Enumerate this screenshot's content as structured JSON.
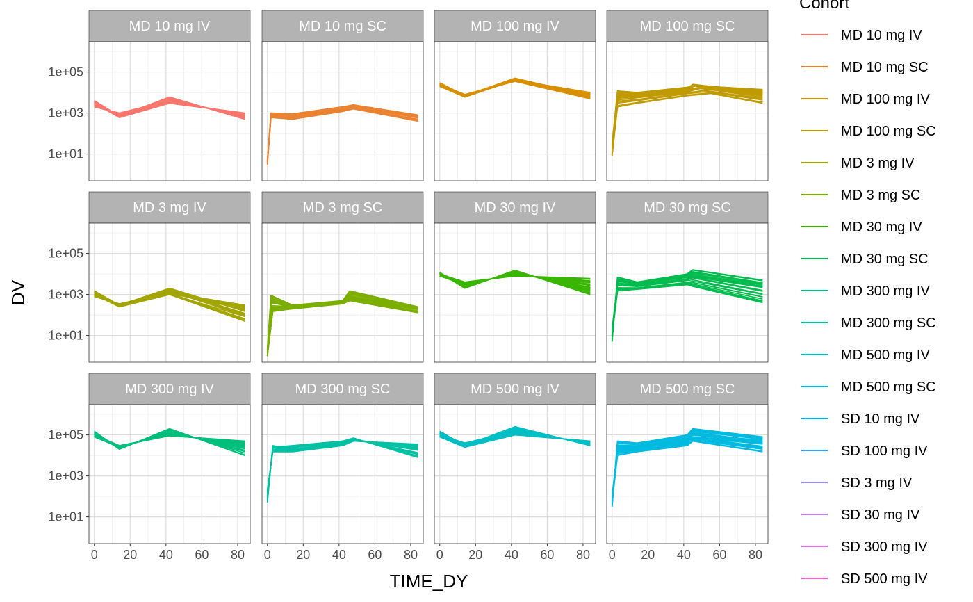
{
  "chart_data": {
    "type": "line",
    "title": "",
    "xlabel": "TIME_DY",
    "ylabel": "DV",
    "x_scale": "linear",
    "y_scale": "log10",
    "xlim": [
      -3,
      87
    ],
    "ylim": [
      0.5,
      3000000
    ],
    "x_ticks": [
      0,
      20,
      40,
      60,
      80
    ],
    "y_ticks": [
      10,
      1000,
      100000
    ],
    "y_tick_labels": [
      "1e+01",
      "1e+03",
      "1e+05"
    ],
    "grid": true,
    "legend_position": "right",
    "legend_title": "Cohort",
    "legend": [
      {
        "label": "MD 10 mg IV",
        "color": "#F8766D"
      },
      {
        "label": "MD 10 mg SC",
        "color": "#EA8331"
      },
      {
        "label": "MD 100 mg IV",
        "color": "#D89000"
      },
      {
        "label": "MD 100 mg SC",
        "color": "#C09B00"
      },
      {
        "label": "MD 3 mg IV",
        "color": "#A3A500"
      },
      {
        "label": "MD 3 mg SC",
        "color": "#7CAE00"
      },
      {
        "label": "MD 30 mg IV",
        "color": "#39B600"
      },
      {
        "label": "MD 30 mg SC",
        "color": "#00BB4E"
      },
      {
        "label": "MD 300 mg IV",
        "color": "#00BF7D"
      },
      {
        "label": "MD 300 mg SC",
        "color": "#00C1A3"
      },
      {
        "label": "MD 500 mg IV",
        "color": "#00BFC4"
      },
      {
        "label": "MD 500 mg SC",
        "color": "#00BAE0"
      },
      {
        "label": "SD 10 mg IV",
        "color": "#00B0F6"
      },
      {
        "label": "SD 100 mg IV",
        "color": "#35A2FF"
      },
      {
        "label": "SD 3 mg IV",
        "color": "#9590FF"
      },
      {
        "label": "SD 30 mg IV",
        "color": "#C77CFF"
      },
      {
        "label": "SD 300 mg IV",
        "color": "#E76BF3"
      },
      {
        "label": "SD 500 mg IV",
        "color": "#FA62DB"
      }
    ],
    "panels": [
      {
        "label": "MD 10 mg IV",
        "color": "#F8766D",
        "route": "IV",
        "series": [
          {
            "x": [
              0,
              14,
              42,
              84
            ],
            "y": [
              4000,
              700,
              6000,
              500
            ]
          },
          {
            "x": [
              0,
              14,
              42,
              84
            ],
            "y": [
              2000,
              1000,
              4000,
              800
            ]
          },
          {
            "x": [
              0,
              14,
              42,
              84
            ],
            "y": [
              3000,
              600,
              3000,
              1000
            ]
          }
        ]
      },
      {
        "label": "MD 10 mg SC",
        "color": "#EA8331",
        "route": "SC",
        "series": [
          {
            "x": [
              0,
              2,
              14,
              42,
              48,
              84
            ],
            "y": [
              3,
              800,
              700,
              1500,
              2000,
              600
            ]
          },
          {
            "x": [
              0,
              2,
              14,
              42,
              48,
              84
            ],
            "y": [
              5,
              1000,
              900,
              2000,
              2500,
              800
            ]
          },
          {
            "x": [
              0,
              2,
              14,
              42,
              48,
              84
            ],
            "y": [
              4,
              600,
              500,
              1200,
              1600,
              400
            ]
          }
        ]
      },
      {
        "label": "MD 100 mg IV",
        "color": "#D89000",
        "route": "IV",
        "series": [
          {
            "x": [
              0,
              14,
              42,
              84
            ],
            "y": [
              30000,
              7000,
              50000,
              7000
            ]
          },
          {
            "x": [
              0,
              14,
              42,
              84
            ],
            "y": [
              20000,
              6000,
              40000,
              10000
            ]
          },
          {
            "x": [
              0,
              14,
              42,
              84
            ],
            "y": [
              25000,
              8000,
              35000,
              5000
            ]
          }
        ]
      },
      {
        "label": "MD 100 mg SC",
        "color": "#C09B00",
        "route": "SC",
        "series": [
          {
            "x": [
              0,
              3,
              14,
              42,
              45,
              84
            ],
            "y": [
              10,
              8000,
              9000,
              15000,
              25000,
              10000
            ]
          },
          {
            "x": [
              0,
              3,
              14,
              42,
              45,
              84
            ],
            "y": [
              30,
              12000,
              10000,
              18000,
              22000,
              14000
            ]
          },
          {
            "x": [
              0,
              3,
              14,
              42,
              55,
              84
            ],
            "y": [
              8,
              2000,
              3000,
              7000,
              9000,
              3000
            ]
          }
        ]
      },
      {
        "label": "MD 3 mg IV",
        "color": "#A3A500",
        "route": "IV",
        "series": [
          {
            "x": [
              0,
              14,
              42,
              84
            ],
            "y": [
              1500,
              300,
              2000,
              150
            ]
          },
          {
            "x": [
              0,
              14,
              42,
              84
            ],
            "y": [
              800,
              350,
              1200,
              300
            ]
          },
          {
            "x": [
              0,
              14,
              42,
              84
            ],
            "y": [
              1000,
              250,
              1000,
              50
            ]
          }
        ]
      },
      {
        "label": "MD 3 mg SC",
        "color": "#7CAE00",
        "route": "SC",
        "series": [
          {
            "x": [
              0,
              3,
              14,
              42,
              46,
              84
            ],
            "y": [
              1,
              200,
              250,
              450,
              700,
              200
            ]
          },
          {
            "x": [
              0,
              2,
              14,
              42,
              46,
              84
            ],
            "y": [
              2,
              900,
              300,
              500,
              1500,
              250
            ]
          },
          {
            "x": [
              0,
              3,
              14,
              42,
              46,
              84
            ],
            "y": [
              1,
              150,
              200,
              350,
              500,
              130
            ]
          }
        ]
      },
      {
        "label": "MD 30 mg IV",
        "color": "#39B600",
        "route": "IV",
        "series": [
          {
            "x": [
              0,
              14,
              42,
              84
            ],
            "y": [
              12000,
              2000,
              15000,
              1000
            ]
          },
          {
            "x": [
              0,
              14,
              42,
              84
            ],
            "y": [
              8000,
              3000,
              10000,
              3000
            ]
          },
          {
            "x": [
              0,
              14,
              42,
              84
            ],
            "y": [
              10000,
              4000,
              8000,
              6000
            ]
          }
        ]
      },
      {
        "label": "MD 30 mg SC",
        "color": "#00BB4E",
        "route": "SC",
        "series": [
          {
            "x": [
              0,
              3,
              14,
              42,
              45,
              84
            ],
            "y": [
              5,
              7000,
              4000,
              10000,
              16000,
              5000
            ]
          },
          {
            "x": [
              0,
              3,
              14,
              42,
              45,
              84
            ],
            "y": [
              20,
              3000,
              2500,
              5000,
              8000,
              2500
            ]
          },
          {
            "x": [
              0,
              3,
              14,
              42,
              45,
              84
            ],
            "y": [
              10,
              1500,
              1800,
              3000,
              2500,
              400
            ]
          }
        ]
      },
      {
        "label": "MD 300 mg IV",
        "color": "#00BF7D",
        "route": "IV",
        "series": [
          {
            "x": [
              0,
              14,
              42,
              84
            ],
            "y": [
              150000,
              20000,
              200000,
              10000
            ]
          },
          {
            "x": [
              0,
              14,
              42,
              84
            ],
            "y": [
              80000,
              25000,
              120000,
              30000
            ]
          },
          {
            "x": [
              0,
              14,
              42,
              84
            ],
            "y": [
              100000,
              30000,
              90000,
              50000
            ]
          }
        ]
      },
      {
        "label": "MD 300 mg SC",
        "color": "#00C1A3",
        "route": "SC",
        "series": [
          {
            "x": [
              0,
              3,
              14,
              42,
              48,
              84
            ],
            "y": [
              50,
              30000,
              20000,
              40000,
              60000,
              20000
            ]
          },
          {
            "x": [
              0,
              3,
              14,
              42,
              48,
              84
            ],
            "y": [
              200,
              15000,
              15000,
              30000,
              50000,
              35000
            ]
          },
          {
            "x": [
              0,
              3,
              14,
              42,
              48,
              84
            ],
            "y": [
              100,
              25000,
              30000,
              50000,
              70000,
              8000
            ]
          }
        ]
      },
      {
        "label": "MD 500 mg IV",
        "color": "#00BFC4",
        "route": "IV",
        "series": [
          {
            "x": [
              0,
              14,
              42,
              84
            ],
            "y": [
              150000,
              30000,
              250000,
              30000
            ]
          },
          {
            "x": [
              0,
              14,
              42,
              84
            ],
            "y": [
              100000,
              40000,
              150000,
              40000
            ]
          },
          {
            "x": [
              0,
              14,
              42,
              84
            ],
            "y": [
              80000,
              25000,
              100000,
              50000
            ]
          }
        ]
      },
      {
        "label": "MD 500 mg SC",
        "color": "#00BAE0",
        "route": "SC",
        "series": [
          {
            "x": [
              0,
              3,
              14,
              42,
              45,
              84
            ],
            "y": [
              30,
              50000,
              40000,
              100000,
              200000,
              80000
            ]
          },
          {
            "x": [
              0,
              3,
              14,
              42,
              45,
              84
            ],
            "y": [
              100,
              20000,
              25000,
              50000,
              80000,
              40000
            ]
          },
          {
            "x": [
              0,
              3,
              14,
              42,
              45,
              84
            ],
            "y": [
              50,
              10000,
              15000,
              30000,
              50000,
              15000
            ]
          }
        ]
      }
    ]
  }
}
